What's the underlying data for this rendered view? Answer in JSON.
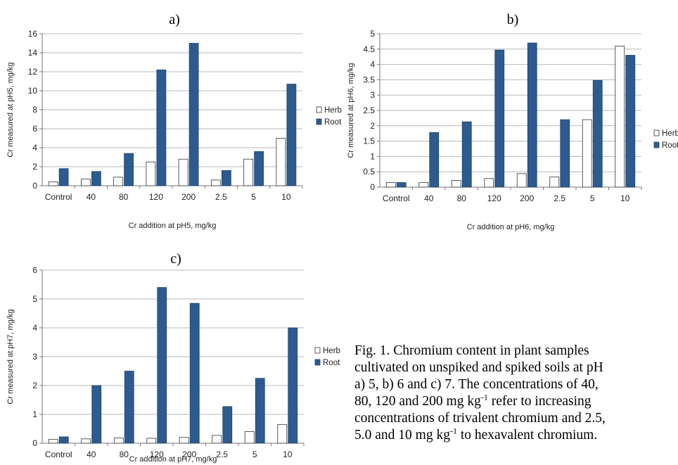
{
  "chart_data": [
    {
      "panel": "a)",
      "type": "bar",
      "categories": [
        "Control",
        "40",
        "80",
        "120",
        "200",
        "2.5",
        "5",
        "10"
      ],
      "series": [
        {
          "name": "Herb",
          "color": "#ffffff",
          "values": [
            0.4,
            0.7,
            0.9,
            2.5,
            2.8,
            0.6,
            2.8,
            5.0
          ]
        },
        {
          "name": "Root",
          "color": "#2d5b8f",
          "values": [
            1.8,
            1.5,
            3.4,
            12.2,
            15.0,
            1.6,
            3.6,
            10.7
          ]
        }
      ],
      "xlabel": "Cr addition at pH5, mg/kg",
      "ylabel": "Cr measured at pH5, mg/kg",
      "ylim": [
        0,
        16
      ],
      "yticks": [
        "0",
        "2",
        "4",
        "6",
        "8",
        "10",
        "12",
        "14",
        "16"
      ],
      "grid": true,
      "legend": "right"
    },
    {
      "panel": "b)",
      "type": "bar",
      "categories": [
        "Control",
        "40",
        "80",
        "120",
        "200",
        "2.5",
        "5",
        "10"
      ],
      "series": [
        {
          "name": "Herb",
          "color": "#ffffff",
          "values": [
            0.15,
            0.15,
            0.22,
            0.28,
            0.44,
            0.33,
            2.2,
            4.6
          ]
        },
        {
          "name": "Root",
          "color": "#2d5b8f",
          "values": [
            0.15,
            1.78,
            2.13,
            4.47,
            4.7,
            2.2,
            3.48,
            4.3
          ]
        }
      ],
      "xlabel": "Cr addition at pH6, mg/kg",
      "ylabel": "Cr measured at pH6, mg/kg",
      "ylim": [
        0,
        5
      ],
      "yticks": [
        "0",
        "0.5",
        "1",
        "1.5",
        "2",
        "2.5",
        "3",
        "3.5",
        "4",
        "4.5",
        "5"
      ],
      "grid": true,
      "legend": "right"
    },
    {
      "panel": "c)",
      "type": "bar",
      "categories": [
        "Control",
        "40",
        "80",
        "120",
        "200",
        "2.5",
        "5",
        "10"
      ],
      "series": [
        {
          "name": "Herb",
          "color": "#ffffff",
          "values": [
            0.13,
            0.15,
            0.18,
            0.17,
            0.2,
            0.27,
            0.4,
            0.65
          ]
        },
        {
          "name": "Root",
          "color": "#2d5b8f",
          "values": [
            0.22,
            2.0,
            2.5,
            5.4,
            4.85,
            1.27,
            2.25,
            4.0
          ]
        }
      ],
      "xlabel": "Cr addition at pH7, mg/kg",
      "ylabel": "Cr measured at pH7, mg/kg",
      "ylim": [
        0,
        6
      ],
      "yticks": [
        "0",
        "1",
        "2",
        "3",
        "4",
        "5",
        "6"
      ],
      "grid": true,
      "legend": "right"
    }
  ],
  "caption": {
    "line1": "Fig. 1. Chromium content in plant samples",
    "line2": "cultivated on unspiked and spiked soils at pH",
    "line3": "a) 5, b) 6 and c) 7. The concentrations of 40,",
    "line4a": "80, 120 and 200 mg kg",
    "line4sup": "-1",
    "line4b": " refer to increasing",
    "line5": "concentrations of trivalent chromium and 2.5,",
    "line6a": "5.0 and 10 mg kg",
    "line6sup": "-1",
    "line6b": " to hexavalent chromium."
  },
  "colors": {
    "herb": "#ffffff",
    "root": "#2d5b8f",
    "grid": "#b8b8b8",
    "axis": "#777777"
  }
}
